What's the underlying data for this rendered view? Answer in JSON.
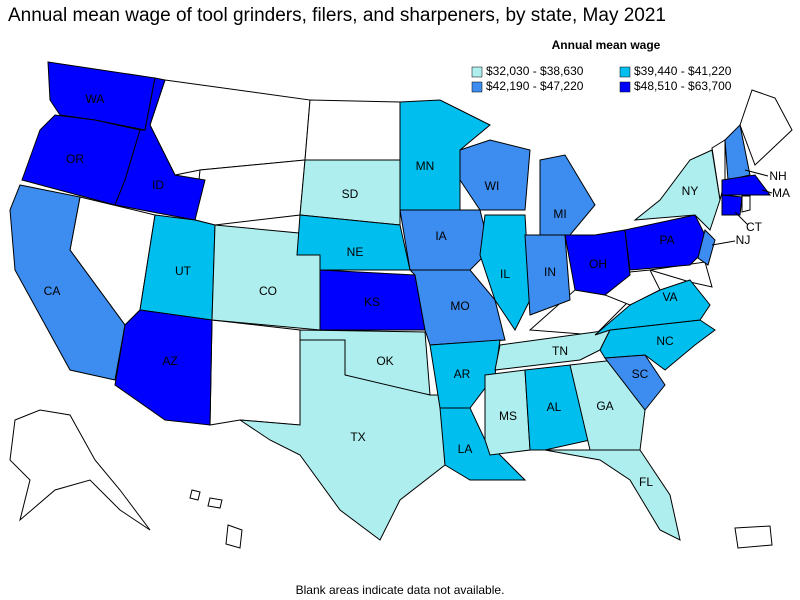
{
  "title": "Annual mean wage of tool grinders, filers, and sharpeners, by state, May 2021",
  "legend": {
    "title": "Annual mean wage",
    "items": [
      {
        "label": "$32,030 - $38,630",
        "color": "#aeeeee"
      },
      {
        "label": "$39,440 - $41,220",
        "color": "#00bfef"
      },
      {
        "label": "$42,190 - $47,220",
        "color": "#3d8cf0"
      },
      {
        "label": "$48,510 - $63,700",
        "color": "#0000ff"
      }
    ]
  },
  "states": [
    {
      "label": "WA",
      "wage_group": 3
    },
    {
      "label": "OR",
      "wage_group": 3
    },
    {
      "label": "ID",
      "wage_group": 3
    },
    {
      "label": "CA",
      "wage_group": 2
    },
    {
      "label": "UT",
      "wage_group": 1
    },
    {
      "label": "AZ",
      "wage_group": 3
    },
    {
      "label": "CO",
      "wage_group": 0
    },
    {
      "label": "SD",
      "wage_group": 0
    },
    {
      "label": "NE",
      "wage_group": 1
    },
    {
      "label": "KS",
      "wage_group": 3
    },
    {
      "label": "OK",
      "wage_group": 0
    },
    {
      "label": "TX",
      "wage_group": 0
    },
    {
      "label": "MN",
      "wage_group": 1
    },
    {
      "label": "IA",
      "wage_group": 2
    },
    {
      "label": "MO",
      "wage_group": 2
    },
    {
      "label": "AR",
      "wage_group": 1
    },
    {
      "label": "LA",
      "wage_group": 1
    },
    {
      "label": "WI",
      "wage_group": 2
    },
    {
      "label": "IL",
      "wage_group": 1
    },
    {
      "label": "MI",
      "wage_group": 2
    },
    {
      "label": "IN",
      "wage_group": 2
    },
    {
      "label": "OH",
      "wage_group": 3
    },
    {
      "label": "TN",
      "wage_group": 0
    },
    {
      "label": "MS",
      "wage_group": 0
    },
    {
      "label": "AL",
      "wage_group": 1
    },
    {
      "label": "GA",
      "wage_group": 0
    },
    {
      "label": "FL",
      "wage_group": 0
    },
    {
      "label": "SC",
      "wage_group": 2
    },
    {
      "label": "NC",
      "wage_group": 1
    },
    {
      "label": "VA",
      "wage_group": 1
    },
    {
      "label": "PA",
      "wage_group": 3
    },
    {
      "label": "NY",
      "wage_group": 0
    },
    {
      "label": "NJ",
      "wage_group": 2
    },
    {
      "label": "NH",
      "wage_group": 2
    },
    {
      "label": "MA",
      "wage_group": 3
    },
    {
      "label": "CT",
      "wage_group": 3
    }
  ],
  "footnote": "Blank areas indicate data not available."
}
